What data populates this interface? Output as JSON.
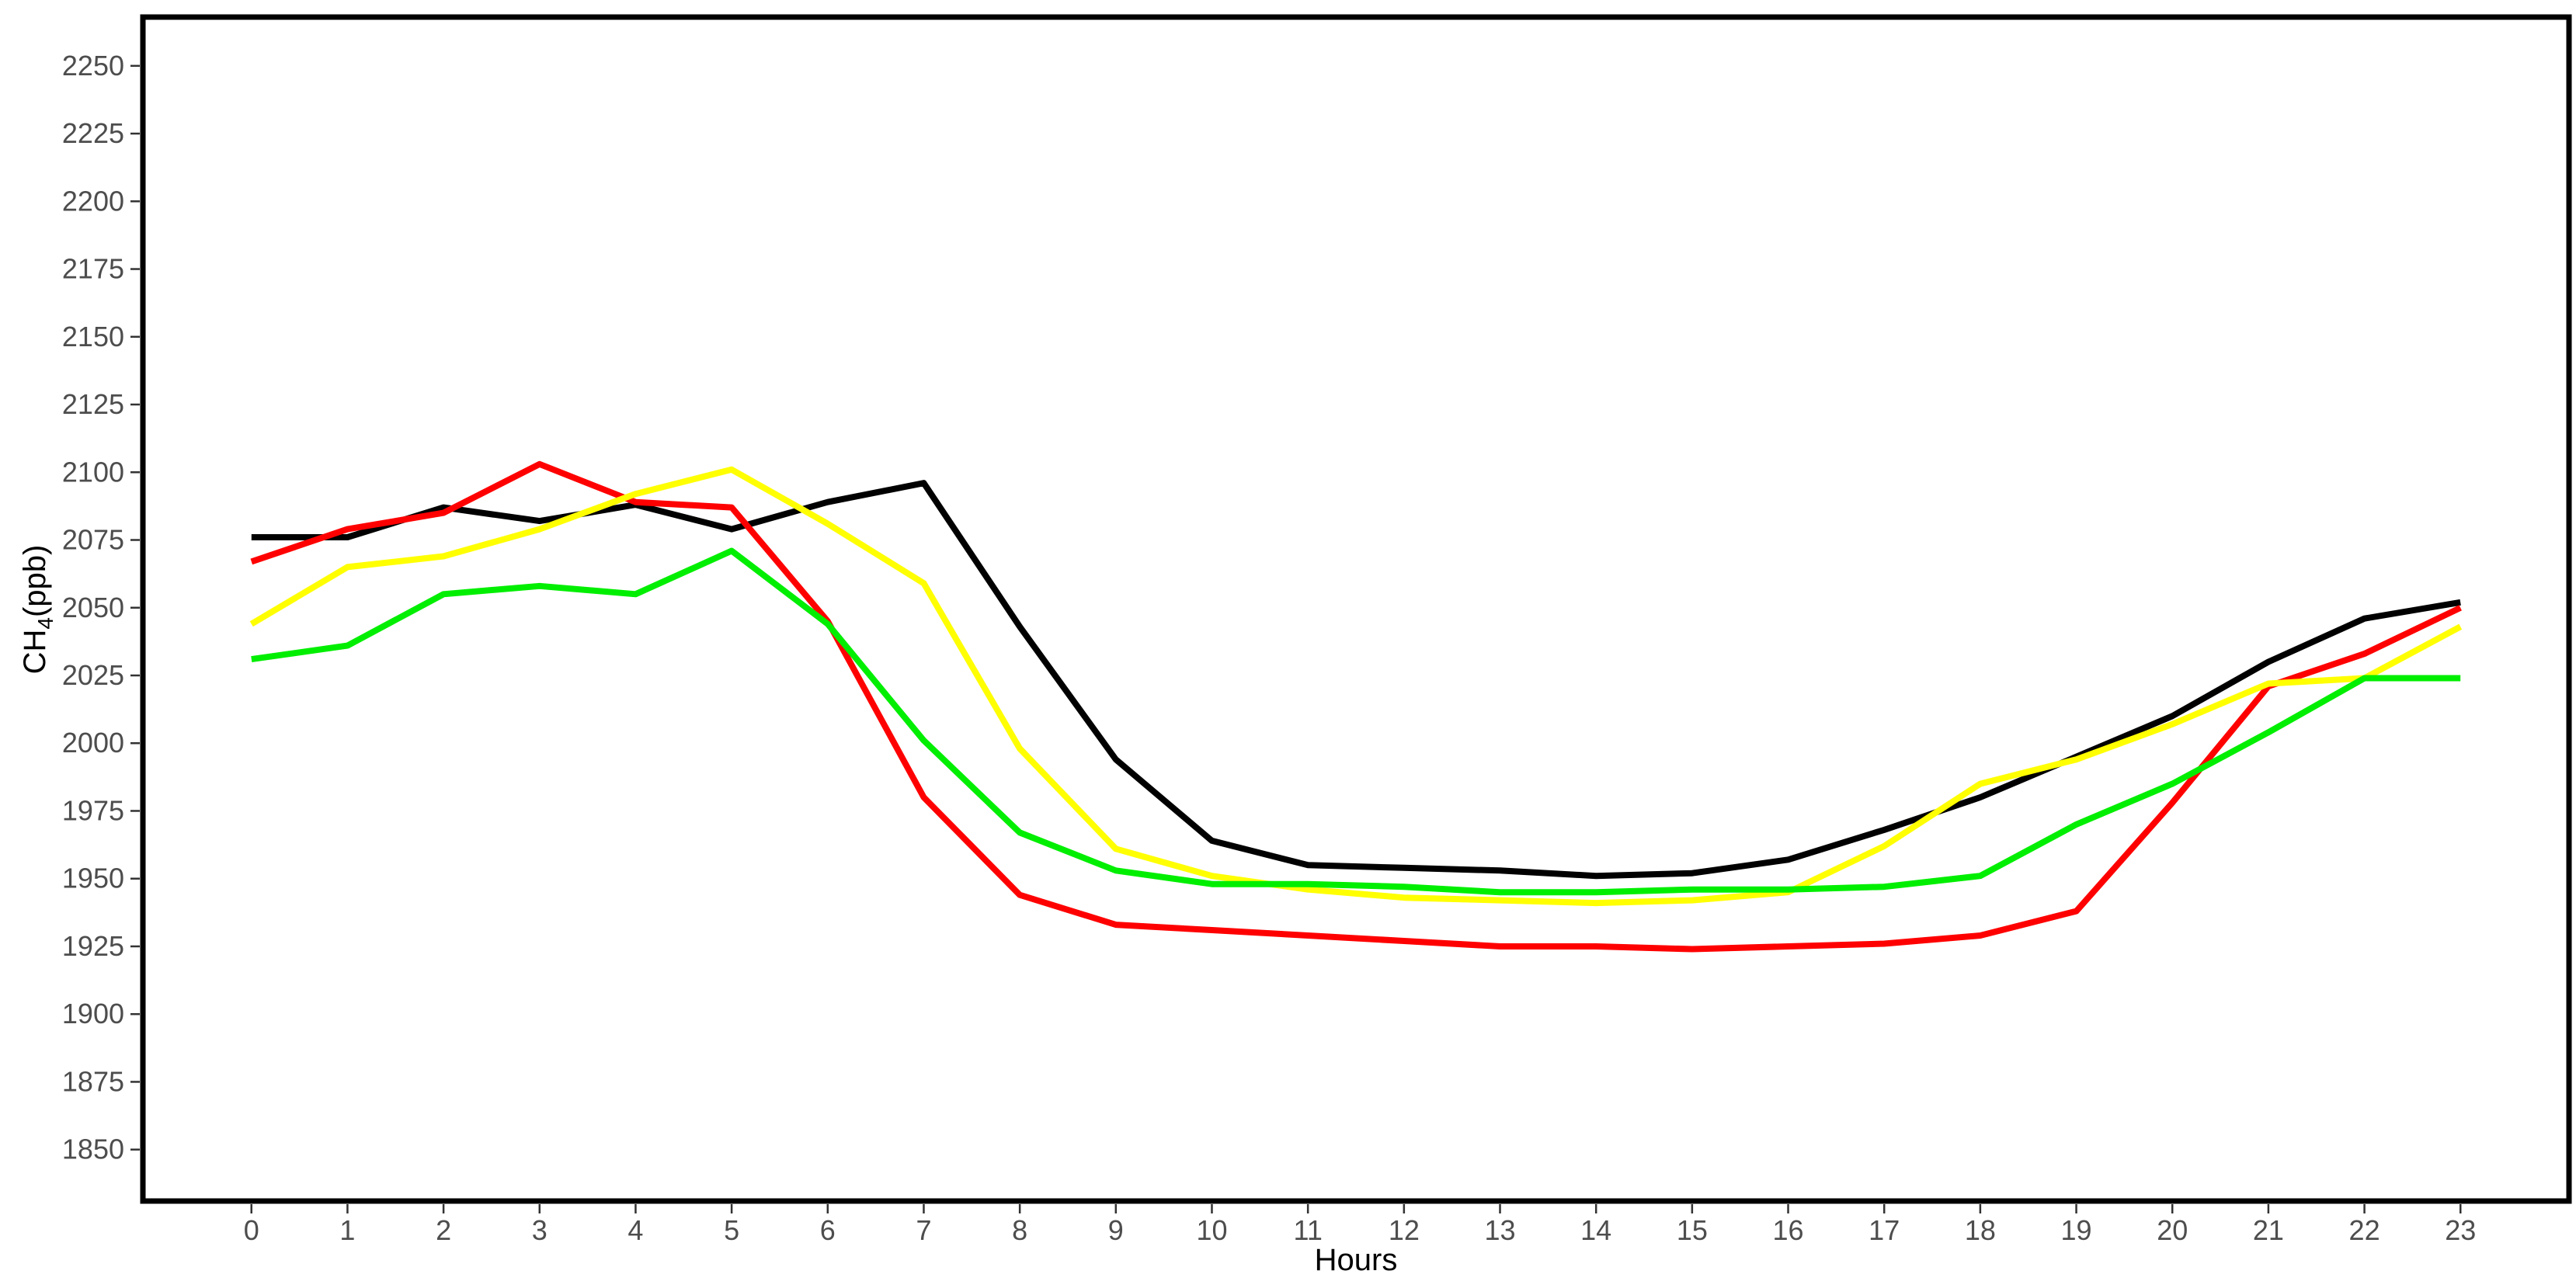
{
  "chart_data": {
    "type": "line",
    "xlabel": "Hours",
    "ylabel": {
      "main": "CH",
      "sub": "4",
      "unit": "(ppb)"
    },
    "x": [
      0,
      1,
      2,
      3,
      4,
      5,
      6,
      7,
      8,
      9,
      10,
      11,
      12,
      13,
      14,
      15,
      16,
      17,
      18,
      19,
      20,
      21,
      22,
      23
    ],
    "xlim": [
      -1.13,
      24.13
    ],
    "ylim": [
      1831,
      2268
    ],
    "yticks": [
      1850,
      1875,
      1900,
      1925,
      1950,
      1975,
      2000,
      2025,
      2050,
      2075,
      2100,
      2125,
      2150,
      2175,
      2200,
      2225,
      2250
    ],
    "grid": false,
    "series": [
      {
        "color": "#000000",
        "values": [
          2076,
          2076,
          2087,
          2082,
          2088,
          2079,
          2089,
          2096,
          2043,
          1994,
          1964,
          1955,
          1954,
          1953,
          1951,
          1952,
          1957,
          1968,
          1980,
          1995,
          2010,
          2030,
          2046,
          2052
        ]
      },
      {
        "color": "#ff0000",
        "values": [
          2067,
          2079,
          2085,
          2103,
          2089,
          2087,
          2045,
          1980,
          1944,
          1933,
          1931,
          1929,
          1927,
          1925,
          1925,
          1924,
          1925,
          1926,
          1929,
          1938,
          1978,
          2021,
          2033,
          2050
        ]
      },
      {
        "color": "#ffff00",
        "values": [
          2044,
          2065,
          2069,
          2079,
          2092,
          2101,
          2081,
          2059,
          1998,
          1961,
          1951,
          1946,
          1943,
          1942,
          1941,
          1942,
          1945,
          1962,
          1985,
          1994,
          2007,
          2022,
          2024,
          2043
        ]
      },
      {
        "color": "#00ee00",
        "values": [
          2031,
          2036,
          2055,
          2058,
          2055,
          2071,
          2044,
          2001,
          1967,
          1953,
          1948,
          1948,
          1947,
          1945,
          1945,
          1946,
          1946,
          1947,
          1951,
          1970,
          1985,
          2004,
          2024,
          2024
        ]
      }
    ]
  }
}
